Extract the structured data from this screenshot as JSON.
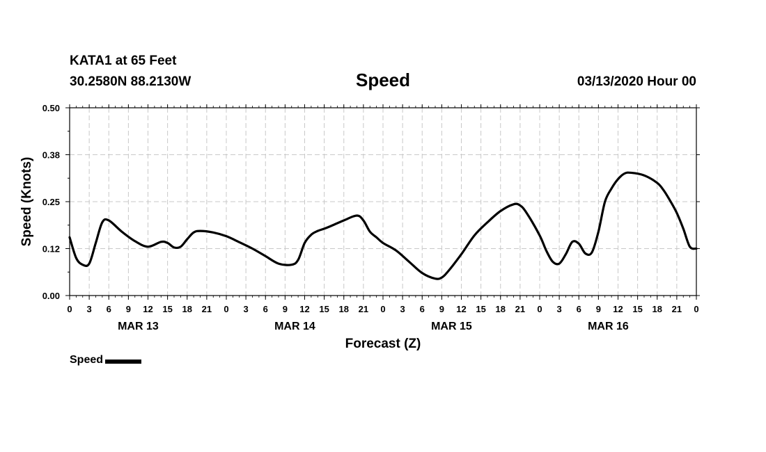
{
  "header": {
    "station": "KATA1 at 65 Feet",
    "coords": "30.2580N 88.2130W",
    "title": "Speed",
    "runtime": "03/13/2020 Hour 00"
  },
  "chart_data": {
    "type": "line",
    "title": "Speed",
    "xlabel": "Forecast (Z)",
    "ylabel": "Speed (Knots)",
    "ylim": [
      0,
      0.5
    ],
    "xlim": [
      0,
      96
    ],
    "y_ticks": [
      "0.00",
      "0.12",
      "0.25",
      "0.38",
      "0.50"
    ],
    "y_tick_values": [
      0,
      0.125,
      0.25,
      0.375,
      0.5
    ],
    "x_tick_labels": [
      "0",
      "3",
      "6",
      "9",
      "12",
      "15",
      "18",
      "21",
      "0",
      "3",
      "6",
      "9",
      "12",
      "15",
      "18",
      "21",
      "0",
      "3",
      "6",
      "9",
      "12",
      "15",
      "18",
      "21",
      "0",
      "3",
      "6",
      "9",
      "12",
      "15",
      "18",
      "21",
      "0"
    ],
    "day_labels": [
      "MAR 13",
      "MAR 14",
      "MAR 15",
      "MAR 16"
    ],
    "grid": true,
    "legend_position": "bottom-left",
    "series": [
      {
        "name": "Speed",
        "color": "#000000",
        "x": [
          0,
          1,
          2,
          3,
          4,
          5,
          6,
          8,
          10,
          12,
          14,
          15,
          16,
          17,
          18,
          19,
          20,
          22,
          24,
          26,
          28,
          30,
          32,
          34,
          35,
          36,
          37,
          38,
          39,
          40,
          42,
          44,
          45,
          46,
          47,
          48,
          50,
          52,
          54,
          56,
          57,
          58,
          60,
          62,
          64,
          66,
          68,
          69,
          70,
          72,
          73,
          74,
          75,
          76,
          77,
          78,
          79,
          80,
          81,
          82,
          83,
          84,
          85,
          86,
          88,
          90,
          91,
          92,
          93,
          94,
          95,
          96
        ],
        "values": [
          0.155,
          0.1,
          0.082,
          0.085,
          0.14,
          0.195,
          0.2,
          0.17,
          0.145,
          0.13,
          0.143,
          0.14,
          0.128,
          0.13,
          0.15,
          0.168,
          0.172,
          0.168,
          0.158,
          0.142,
          0.125,
          0.105,
          0.085,
          0.082,
          0.095,
          0.14,
          0.162,
          0.172,
          0.178,
          0.185,
          0.2,
          0.213,
          0.2,
          0.17,
          0.155,
          0.14,
          0.12,
          0.09,
          0.06,
          0.045,
          0.048,
          0.065,
          0.11,
          0.16,
          0.195,
          0.225,
          0.243,
          0.24,
          0.22,
          0.16,
          0.12,
          0.09,
          0.085,
          0.11,
          0.143,
          0.138,
          0.112,
          0.115,
          0.17,
          0.25,
          0.285,
          0.31,
          0.325,
          0.327,
          0.32,
          0.3,
          0.28,
          0.252,
          0.22,
          0.178,
          0.13,
          0.125
        ]
      }
    ]
  },
  "legend": {
    "label": "Speed"
  }
}
